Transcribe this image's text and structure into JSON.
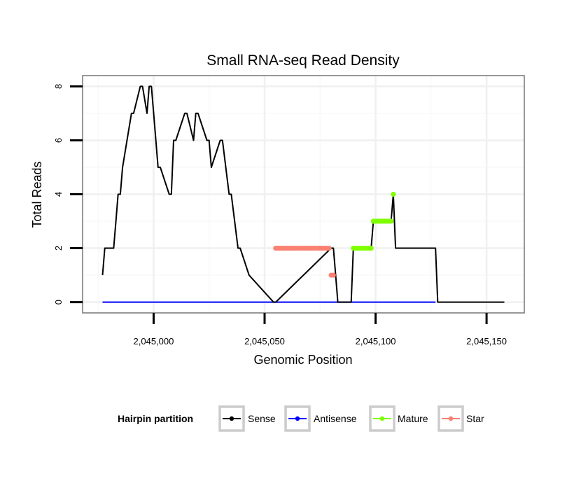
{
  "chart_data": {
    "type": "line",
    "title": "Small RNA-seq Read Density",
    "xlabel": "Genomic Position",
    "ylabel": "Total Reads",
    "xlim": [
      2044968,
      2045167
    ],
    "ylim": [
      -0.4,
      8.4
    ],
    "x_ticks": [
      2045000,
      2045050,
      2045100,
      2045150
    ],
    "x_tick_labels": [
      "2,045,000",
      "2,045,050",
      "2,045,100",
      "2,045,150"
    ],
    "y_ticks": [
      0,
      2,
      4,
      6,
      8
    ],
    "y_tick_labels": [
      "0",
      "2",
      "4",
      "6",
      "8"
    ],
    "grid": true,
    "legend": {
      "title": "Hairpin partition",
      "position": "bottom",
      "entries": [
        "Sense",
        "Antisense",
        "Mature",
        "Star"
      ]
    },
    "series": [
      {
        "name": "Sense",
        "color": "#000000",
        "markers": false,
        "x": [
          2044977,
          2044978,
          2044982,
          2044983,
          2044984,
          2044985,
          2044986,
          2044990,
          2044991,
          2044994,
          2044995,
          2044997,
          2044998,
          2044999,
          2045000,
          2045002,
          2045003,
          2045007,
          2045008,
          2045009,
          2045010,
          2045014,
          2045015,
          2045018,
          2045019,
          2045020,
          2045024,
          2045025,
          2045026,
          2045030,
          2045031,
          2045034,
          2045035,
          2045038,
          2045039,
          2045043,
          2045054,
          2045055,
          2045080,
          2045081,
          2045082,
          2045083,
          2045089,
          2045090,
          2045098,
          2045099,
          2045107,
          2045108,
          2045109,
          2045127,
          2045128,
          2045158
        ],
        "values": [
          1,
          2,
          2,
          3,
          4,
          4,
          5,
          7,
          7,
          8,
          8,
          7,
          8,
          8,
          7,
          5,
          5,
          4,
          4,
          6,
          6,
          7,
          7,
          6,
          7,
          7,
          6,
          6,
          5,
          6,
          6,
          4,
          4,
          2,
          2,
          1,
          0,
          0,
          2,
          2,
          1,
          0,
          0,
          2,
          2,
          3,
          3,
          4,
          2,
          2,
          0,
          0
        ]
      },
      {
        "name": "Antisense",
        "color": "#0000ff",
        "markers": false,
        "x": [
          2044977,
          2045127
        ],
        "values": [
          0,
          0
        ]
      },
      {
        "name": "Mature",
        "color": "#7fff00",
        "markers": true,
        "x": [
          2045090,
          2045091,
          2045092,
          2045093,
          2045094,
          2045095,
          2045096,
          2045097,
          2045098,
          2045099,
          2045100,
          2045101,
          2045102,
          2045103,
          2045104,
          2045105,
          2045106,
          2045107,
          2045108
        ],
        "values": [
          2,
          2,
          2,
          2,
          2,
          2,
          2,
          2,
          2,
          3,
          3,
          3,
          3,
          3,
          3,
          3,
          3,
          3,
          4
        ]
      },
      {
        "name": "Star",
        "color": "#fa8072",
        "markers": true,
        "x": [
          2045055,
          2045056,
          2045057,
          2045058,
          2045059,
          2045060,
          2045061,
          2045062,
          2045063,
          2045064,
          2045065,
          2045066,
          2045067,
          2045068,
          2045069,
          2045070,
          2045071,
          2045072,
          2045073,
          2045074,
          2045075,
          2045076,
          2045077,
          2045078,
          2045079,
          2045080,
          2045081
        ],
        "values": [
          2,
          2,
          2,
          2,
          2,
          2,
          2,
          2,
          2,
          2,
          2,
          2,
          2,
          2,
          2,
          2,
          2,
          2,
          2,
          2,
          2,
          2,
          2,
          2,
          2,
          1,
          1
        ]
      }
    ]
  }
}
